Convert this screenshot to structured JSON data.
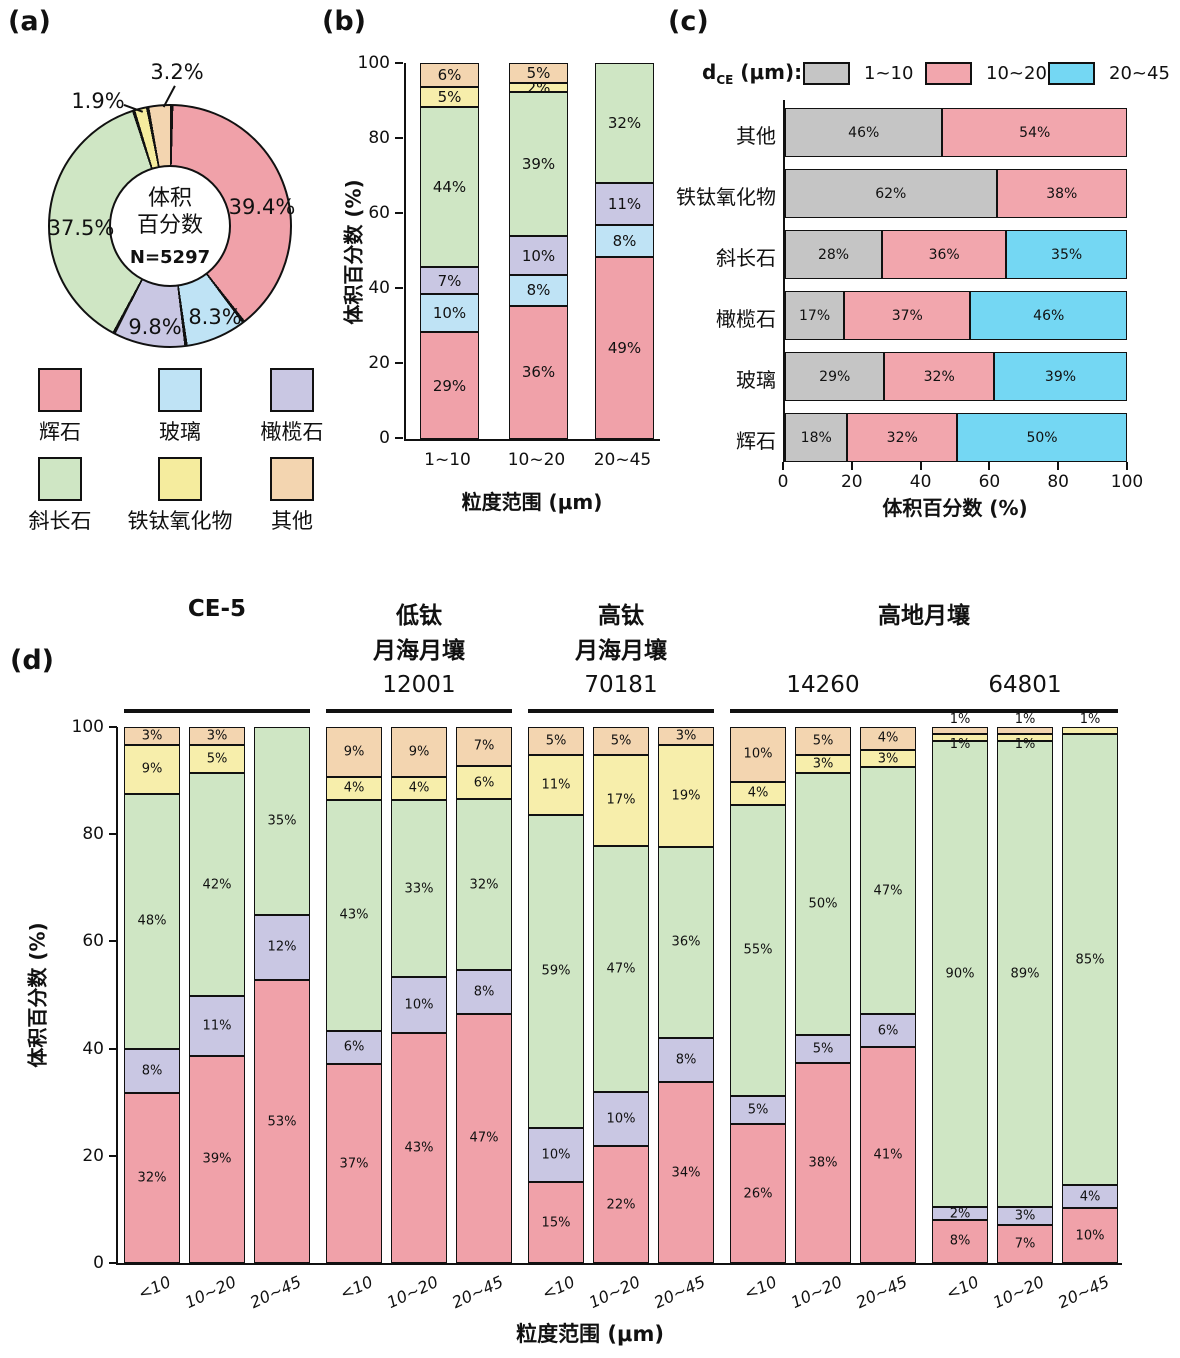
{
  "panels": {
    "a": "(a)",
    "b": "(b)",
    "c": "(c)",
    "d": "(d)"
  },
  "chart_data": [
    {
      "id": "a",
      "type": "pie",
      "donut": true,
      "center": {
        "line1": "体积",
        "line2": "百分数",
        "n": "N=5297"
      },
      "slices": [
        {
          "label": "辉石",
          "color": "#f0a1a9",
          "value": 39.4,
          "text": "39.4%"
        },
        {
          "label": "玻璃",
          "color": "#bfe3f5",
          "value": 8.3,
          "text": "8.3%"
        },
        {
          "label": "橄榄石",
          "color": "#c9c7e3",
          "value": 9.8,
          "text": "9.8%"
        },
        {
          "label": "斜长石",
          "color": "#cfe6c4",
          "value": 37.5,
          "text": "37.5%"
        },
        {
          "label": "铁钛氧化物",
          "color": "#f5ec9e",
          "value": 1.9,
          "text": "1.9%"
        },
        {
          "label": "其他",
          "color": "#f3d5b0",
          "value": 3.2,
          "text": "3.2%"
        }
      ]
    },
    {
      "id": "b",
      "type": "bar",
      "stacked": true,
      "xlabel": "粒度范围 (μm)",
      "ylabel": "体积百分数 (%)",
      "ylim": [
        0,
        100
      ],
      "yticks": [
        0,
        20,
        40,
        60,
        80,
        100
      ],
      "series": [
        "辉石",
        "玻璃",
        "橄榄石",
        "斜长石",
        "铁钛氧化物",
        "其他"
      ],
      "series_colors": [
        "#f0a1a9",
        "#bfe3f5",
        "#c9c7e3",
        "#cfe6c4",
        "#f7eeab",
        "#f3d5b0"
      ],
      "categories": [
        "1~10",
        "10~20",
        "20~45"
      ],
      "bars": [
        [
          {
            "v": 29,
            "t": "29%"
          },
          {
            "v": 10,
            "t": "10%"
          },
          {
            "v": 7,
            "t": "7%"
          },
          {
            "v": 44,
            "t": "44%"
          },
          {
            "v": 5,
            "t": "5%"
          },
          {
            "v": 6,
            "t": "6%"
          }
        ],
        [
          {
            "v": 36,
            "t": "36%"
          },
          {
            "v": 8,
            "t": "8%"
          },
          {
            "v": 10,
            "t": "10%"
          },
          {
            "v": 39,
            "t": "39%"
          },
          {
            "v": 2,
            "t": "2%"
          },
          {
            "v": 5,
            "t": "5%"
          }
        ],
        [
          {
            "v": 49,
            "t": "49%"
          },
          {
            "v": 8,
            "t": "8%"
          },
          {
            "v": 11,
            "t": "11%"
          },
          {
            "v": 32,
            "t": "32%"
          },
          null,
          null
        ]
      ]
    },
    {
      "id": "c",
      "type": "bar",
      "horizontal": true,
      "stacked": true,
      "legend_title": {
        "main": "d",
        "sub": "CE",
        "rest": " (μm):"
      },
      "series": [
        "1~10",
        "10~20",
        "20~45"
      ],
      "series_colors": [
        "#c5c5c5",
        "#f2a6ad",
        "#74d7f3"
      ],
      "xlabel": "体积百分数 (%)",
      "xticks": [
        0,
        20,
        40,
        60,
        80,
        100
      ],
      "xlim": [
        0,
        100
      ],
      "categories": [
        "其他",
        "铁钛氧化物",
        "斜长石",
        "橄榄石",
        "玻璃",
        "辉石"
      ],
      "rows": [
        [
          {
            "v": 46,
            "t": "46%"
          },
          {
            "v": 54,
            "t": "54%"
          },
          null
        ],
        [
          {
            "v": 62,
            "t": "62%"
          },
          {
            "v": 38,
            "t": "38%"
          },
          null
        ],
        [
          {
            "v": 28,
            "t": "28%"
          },
          {
            "v": 36,
            "t": "36%"
          },
          {
            "v": 35,
            "t": "35%"
          }
        ],
        [
          {
            "v": 17,
            "t": "17%"
          },
          {
            "v": 37,
            "t": "37%"
          },
          {
            "v": 46,
            "t": "46%"
          }
        ],
        [
          {
            "v": 29,
            "t": "29%"
          },
          {
            "v": 32,
            "t": "32%"
          },
          {
            "v": 39,
            "t": "39%"
          }
        ],
        [
          {
            "v": 18,
            "t": "18%"
          },
          {
            "v": 32,
            "t": "32%"
          },
          {
            "v": 50,
            "t": "50%"
          }
        ]
      ]
    },
    {
      "id": "d",
      "type": "bar",
      "stacked": true,
      "grouped": true,
      "xlabel": "粒度范围 (μm)",
      "ylabel": "体积百分数 (%)",
      "ylim": [
        0,
        100
      ],
      "yticks": [
        0,
        20,
        40,
        60,
        80,
        100
      ],
      "series": [
        "辉石",
        "橄榄石",
        "斜长石",
        "铁钛氧化物",
        "其他"
      ],
      "series_colors": [
        "#f0a1a9",
        "#c9c7e3",
        "#cfe6c4",
        "#f7eeab",
        "#f3d5b0"
      ],
      "categories": [
        "<10",
        "10~20",
        "20~45"
      ],
      "super_title": {
        "text": "高地月壤",
        "groups": [
          3,
          4
        ]
      },
      "underline_groups": [
        [
          0
        ],
        [
          1
        ],
        [
          2
        ],
        [
          3,
          4
        ]
      ],
      "groups": [
        {
          "title": [
            "CE-5"
          ],
          "sample": "",
          "bars": [
            [
              {
                "v": 32,
                "t": "32%"
              },
              {
                "v": 8,
                "t": "8%"
              },
              {
                "v": 48,
                "t": "48%"
              },
              {
                "v": 9,
                "t": "9%"
              },
              {
                "v": 3,
                "t": "3%"
              }
            ],
            [
              {
                "v": 39,
                "t": "39%"
              },
              {
                "v": 11,
                "t": "11%"
              },
              {
                "v": 42,
                "t": "42%"
              },
              {
                "v": 5,
                "t": "5%"
              },
              {
                "v": 3,
                "t": "3%"
              }
            ],
            [
              {
                "v": 53,
                "t": "53%"
              },
              {
                "v": 12,
                "t": "12%"
              },
              {
                "v": 35,
                "t": "35%"
              },
              null,
              null
            ]
          ]
        },
        {
          "title": [
            "低钛",
            "月海月壤"
          ],
          "sample": "12001",
          "bars": [
            [
              {
                "v": 37,
                "t": "37%"
              },
              {
                "v": 6,
                "t": "6%"
              },
              {
                "v": 43,
                "t": "43%"
              },
              {
                "v": 4,
                "t": "4%"
              },
              {
                "v": 9,
                "t": "9%"
              }
            ],
            [
              {
                "v": 43,
                "t": "43%"
              },
              {
                "v": 10,
                "t": "10%"
              },
              {
                "v": 33,
                "t": "33%"
              },
              {
                "v": 4,
                "t": "4%"
              },
              {
                "v": 9,
                "t": "9%"
              }
            ],
            [
              {
                "v": 47,
                "t": "47%"
              },
              {
                "v": 8,
                "t": "8%"
              },
              {
                "v": 32,
                "t": "32%"
              },
              {
                "v": 6,
                "t": "6%"
              },
              {
                "v": 7,
                "t": "7%"
              }
            ]
          ]
        },
        {
          "title": [
            "高钛",
            "月海月壤"
          ],
          "sample": "70181",
          "bars": [
            [
              {
                "v": 15,
                "t": "15%"
              },
              {
                "v": 10,
                "t": "10%"
              },
              {
                "v": 59,
                "t": "59%"
              },
              {
                "v": 11,
                "t": "11%"
              },
              {
                "v": 5,
                "t": "5%"
              }
            ],
            [
              {
                "v": 22,
                "t": "22%"
              },
              {
                "v": 10,
                "t": "10%"
              },
              {
                "v": 47,
                "t": "47%"
              },
              {
                "v": 17,
                "t": "17%"
              },
              {
                "v": 5,
                "t": "5%"
              }
            ],
            [
              {
                "v": 34,
                "t": "34%"
              },
              {
                "v": 8,
                "t": "8%"
              },
              {
                "v": 36,
                "t": "36%"
              },
              {
                "v": 19,
                "t": "19%"
              },
              {
                "v": 3,
                "t": "3%"
              }
            ]
          ]
        },
        {
          "title": [],
          "sample": "14260",
          "bars": [
            [
              {
                "v": 26,
                "t": "26%"
              },
              {
                "v": 5,
                "t": "5%"
              },
              {
                "v": 55,
                "t": "55%"
              },
              {
                "v": 4,
                "t": "4%"
              },
              {
                "v": 10,
                "t": "10%"
              }
            ],
            [
              {
                "v": 38,
                "t": "38%"
              },
              {
                "v": 5,
                "t": "5%"
              },
              {
                "v": 50,
                "t": "50%"
              },
              {
                "v": 3,
                "t": "3%"
              },
              {
                "v": 5,
                "t": "5%"
              }
            ],
            [
              {
                "v": 41,
                "t": "41%"
              },
              {
                "v": 6,
                "t": "6%"
              },
              {
                "v": 47,
                "t": "47%"
              },
              {
                "v": 3,
                "t": "3%"
              },
              {
                "v": 4,
                "t": "4%"
              }
            ]
          ]
        },
        {
          "title": [],
          "sample": "64801",
          "bars": [
            [
              {
                "v": 8,
                "t": "8%"
              },
              {
                "v": 2,
                "t": "2%"
              },
              {
                "v": 90,
                "t": "90%"
              },
              {
                "v": 1,
                "t": "1%",
                "pos": "below"
              },
              {
                "v": 1,
                "t": "1%",
                "pos": "above"
              }
            ],
            [
              {
                "v": 7,
                "t": "7%"
              },
              {
                "v": 3,
                "t": "3%"
              },
              {
                "v": 89,
                "t": "89%"
              },
              {
                "v": 1,
                "t": "1%",
                "pos": "below"
              },
              {
                "v": 1,
                "t": "1%",
                "pos": "above"
              }
            ],
            [
              {
                "v": 10,
                "t": "10%"
              },
              {
                "v": 4,
                "t": "4%"
              },
              {
                "v": 85,
                "t": "85%"
              },
              {
                "v": 1,
                "t": "1%",
                "pos": "above"
              },
              null
            ]
          ]
        }
      ]
    }
  ]
}
